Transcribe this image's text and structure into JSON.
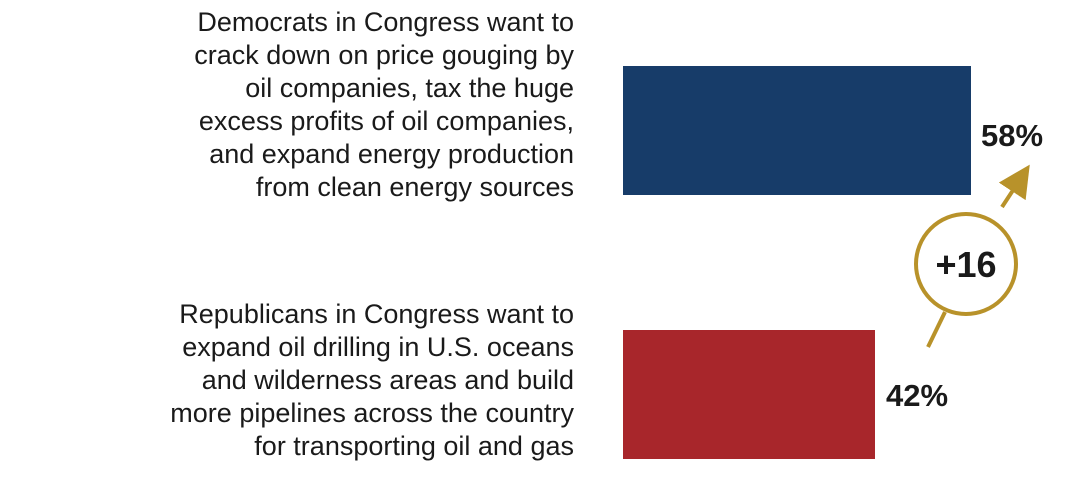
{
  "chart_data": {
    "type": "bar",
    "orientation": "horizontal",
    "categories": [
      "Democrats in Congress want to\ncrack down on price gouging by\noil companies, tax the huge\nexcess profits of oil companies,\nand expand energy production\nfrom clean energy sources",
      "Republicans in Congress want to\nexpand oil drilling in U.S. oceans\nand wilderness areas and build\nmore pipelines across the country\nfor transporting oil and gas"
    ],
    "values": [
      58,
      42
    ],
    "value_labels": [
      "58%",
      "42%"
    ],
    "colors": [
      "#173c69",
      "#a8262b"
    ],
    "xlim": [
      0,
      100
    ],
    "grid": false,
    "legend": "none",
    "annotation": {
      "label": "+16",
      "color": "#b8922a"
    }
  }
}
